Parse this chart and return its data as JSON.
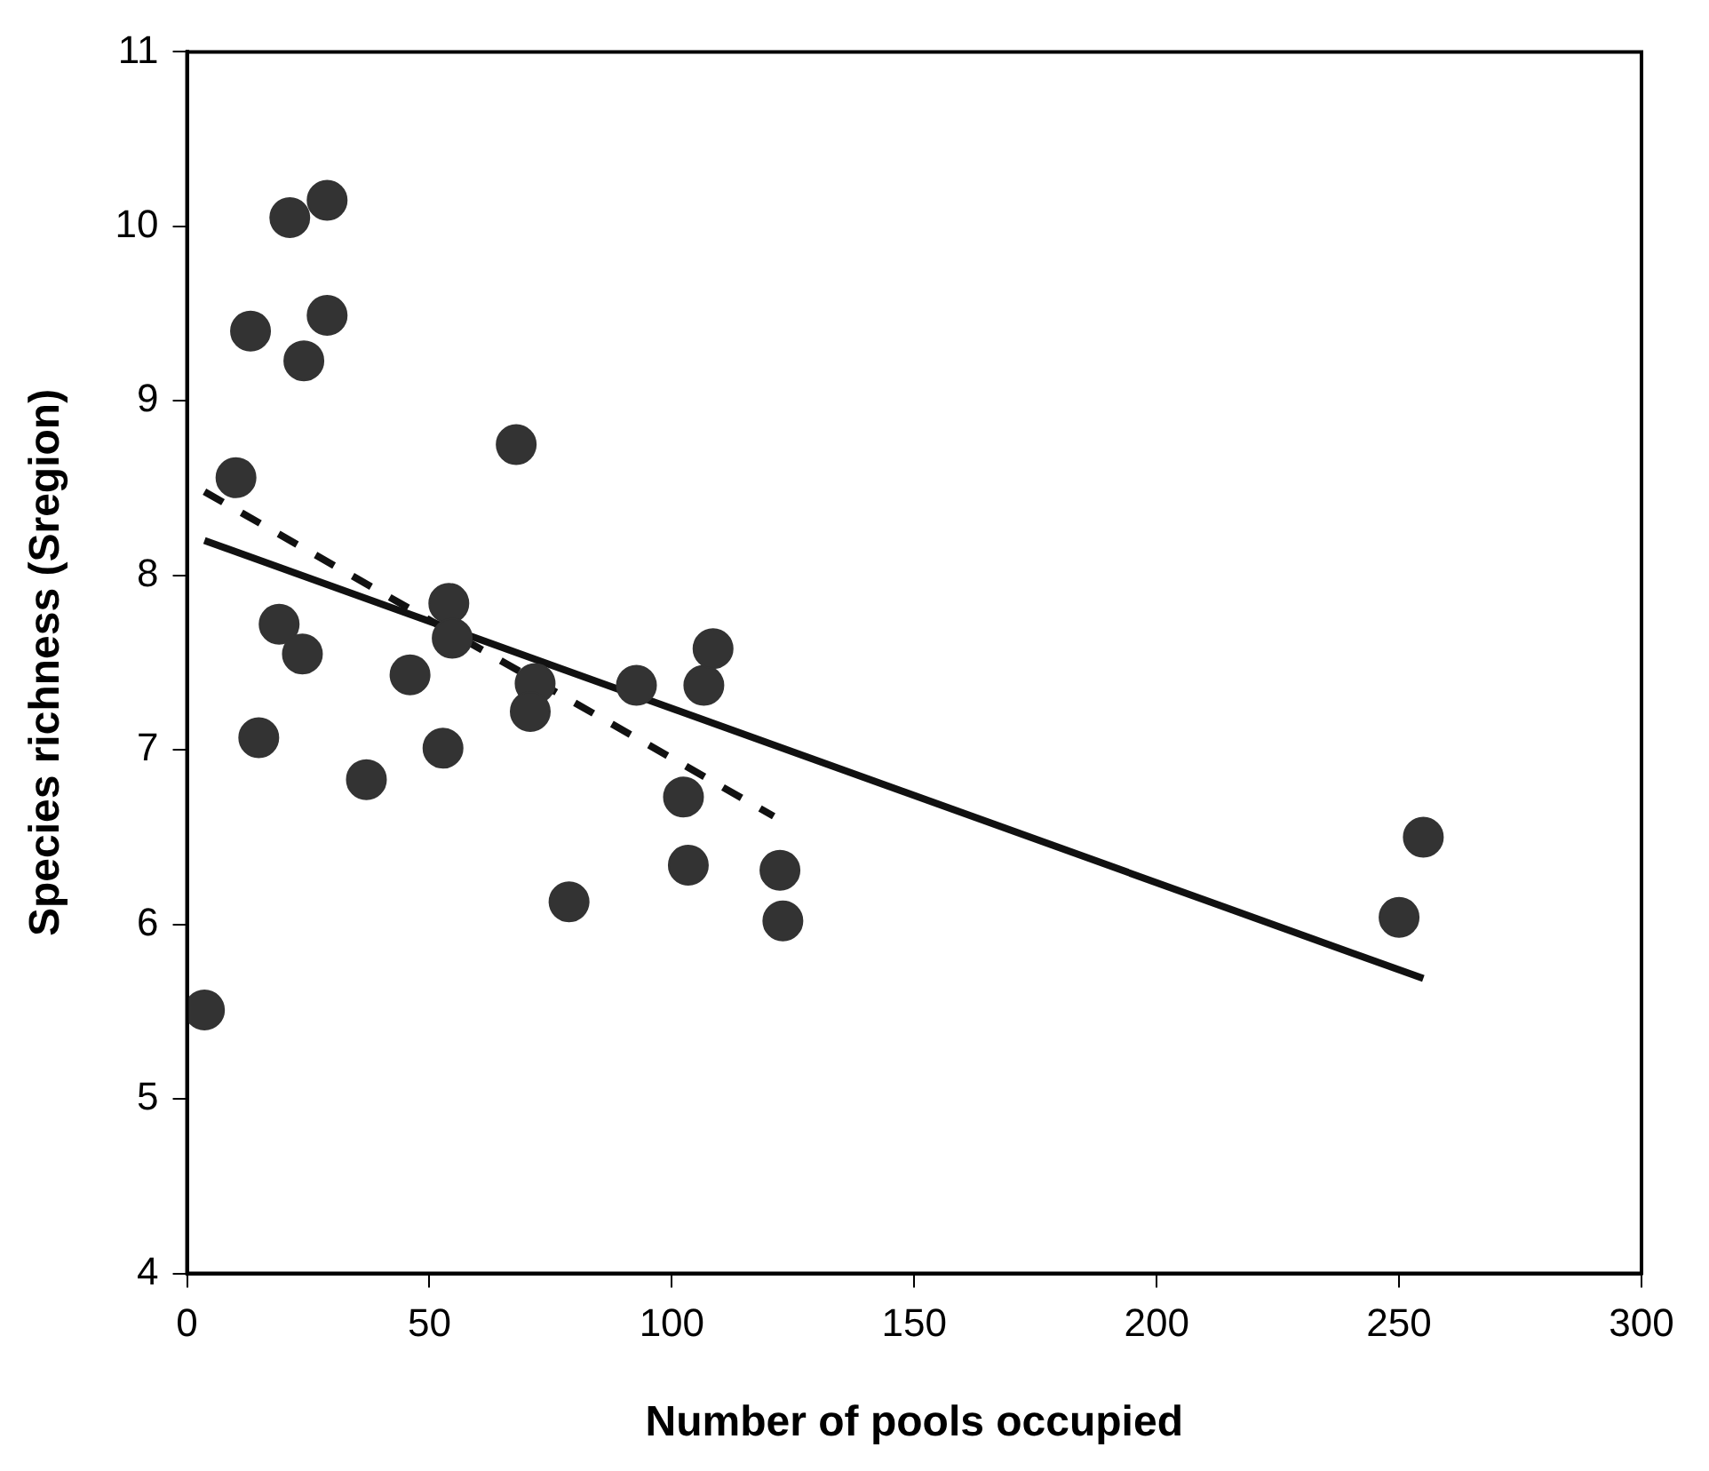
{
  "chart_data": {
    "type": "scatter",
    "xlabel": "Number of pools occupied",
    "ylabel": "Species richness (Sregion)",
    "xlim": [
      0,
      300
    ],
    "xticks": [
      0,
      50,
      100,
      150,
      200,
      250,
      300
    ],
    "ylim": [
      4,
      11
    ],
    "yticks": [
      4,
      5,
      6,
      7,
      8,
      9,
      10,
      11
    ],
    "grid": false,
    "legend": false,
    "marker": "circle",
    "series": [
      {
        "color": "#333333",
        "x": [
          3.6,
          10.1,
          13.1,
          14.8,
          19.0,
          21.2,
          23.8,
          24.1,
          28.9,
          28.9,
          37.0,
          46.0,
          52.8,
          54.0,
          54.7,
          67.9,
          71.8,
          70.8,
          78.8,
          92.7,
          106.6,
          108.5,
          102.4,
          103.4,
          122.3,
          122.9,
          250,
          255
        ],
        "values": [
          5.51,
          8.56,
          9.4,
          7.07,
          7.72,
          10.05,
          7.55,
          9.23,
          9.49,
          10.15,
          6.83,
          7.43,
          7.01,
          7.84,
          7.64,
          8.75,
          7.38,
          7.22,
          6.13,
          7.37,
          7.37,
          7.58,
          6.73,
          6.34,
          6.31,
          6.02,
          6.04,
          6.5
        ]
      },
      {
        "type": "line",
        "color": "#111111",
        "line_style": "solid",
        "marker": "none",
        "x": [
          3.6,
          255
        ],
        "values": [
          8.2,
          5.69
        ]
      },
      {
        "type": "line",
        "color": "#111111",
        "line_style": "dashed",
        "marker": "none",
        "x": [
          3.6,
          121
        ],
        "values": [
          8.48,
          6.62
        ]
      }
    ]
  }
}
